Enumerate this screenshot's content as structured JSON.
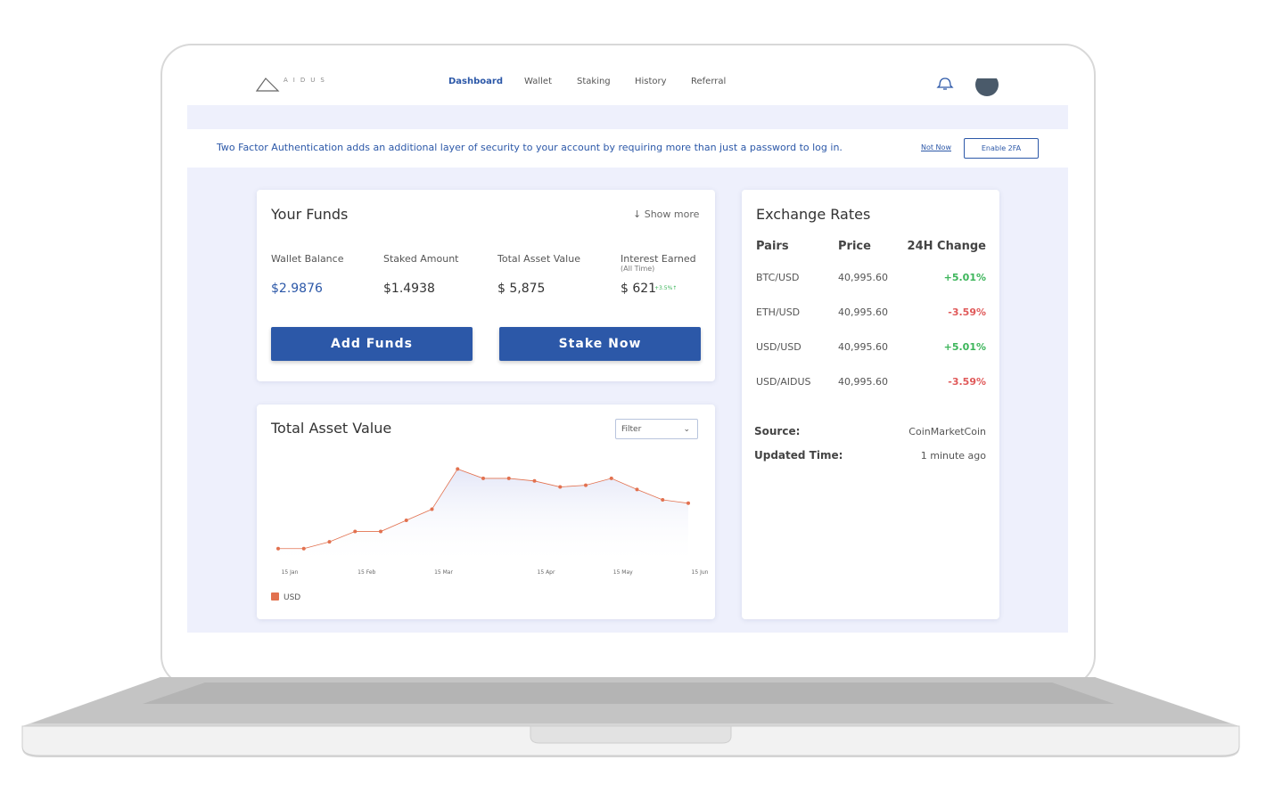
{
  "nav": {
    "logo": "AIDUS",
    "links": [
      "Dashboard",
      "Wallet",
      "Staking",
      "History",
      "Referral"
    ]
  },
  "banner": {
    "message": "Two Factor Authentication adds an additional layer of security to  your account by requiring more than just a password to log in.",
    "dismiss": "Not Now",
    "action": "Enable 2FA"
  },
  "funds": {
    "title": "Your Funds",
    "show_more": "Show more",
    "items": [
      {
        "label": "Wallet Balance",
        "value": "$2.9876"
      },
      {
        "label": "Staked Amount",
        "value": "$1.4938"
      },
      {
        "label": "Total Asset Value",
        "value": "$ 5,875"
      },
      {
        "label": "Interest Earned",
        "sublabel": "(All Time)",
        "value": "$ 621",
        "change": "+3.5%↑"
      }
    ],
    "buttons": [
      "Add Funds",
      "Stake Now"
    ]
  },
  "asset_panel": {
    "title": "Total Asset Value",
    "filter": "Filter"
  },
  "chart_data": {
    "type": "line",
    "categories": [
      "15 Jan",
      null,
      null,
      "15 Feb",
      null,
      null,
      "15 Mar",
      null,
      null,
      null,
      "15 Apr",
      null,
      null,
      "15 May",
      null,
      null,
      "15 Jun"
    ],
    "series": [
      {
        "name": "USD",
        "color": "#e2714f",
        "values": [
          20,
          20,
          28,
          40,
          40,
          53,
          66,
          113,
          102,
          102,
          99,
          92,
          94,
          102,
          89,
          77,
          73
        ]
      }
    ],
    "ylim": [
      0,
      130
    ]
  },
  "rates": {
    "title": "Exchange Rates",
    "headers": [
      "Pairs",
      "Price",
      "24H Change"
    ],
    "rows": [
      [
        "BTC/USD",
        "40,995.60",
        "+5.01%"
      ],
      [
        "ETH/USD",
        "40,995.60",
        "-3.59%"
      ],
      [
        "USD/USD",
        "40,995.60",
        "+5.01%"
      ],
      [
        "USD/AIDUS",
        "40,995.60",
        "-3.59%"
      ]
    ],
    "source_label": "Source:",
    "source": "CoinMarketCoin",
    "updated_label": "Updated Time:",
    "updated": "1 minute ago"
  }
}
